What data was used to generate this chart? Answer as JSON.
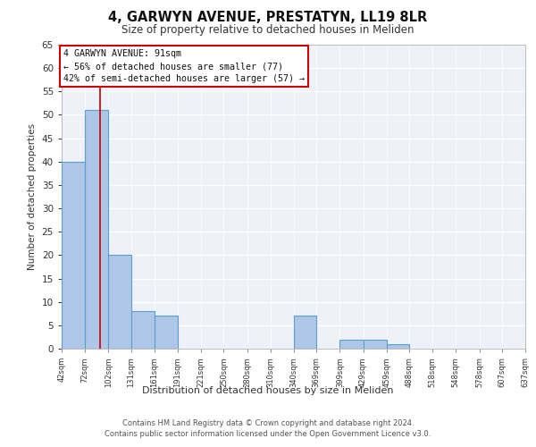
{
  "title1": "4, GARWYN AVENUE, PRESTATYN, LL19 8LR",
  "title2": "Size of property relative to detached houses in Meliden",
  "xlabel": "Distribution of detached houses by size in Meliden",
  "ylabel": "Number of detached properties",
  "bar_values": [
    40,
    51,
    20,
    8,
    7,
    0,
    0,
    0,
    0,
    0,
    7,
    0,
    2,
    2,
    1,
    0,
    0,
    0,
    0,
    0
  ],
  "bin_edges": [
    42,
    72,
    102,
    131,
    161,
    191,
    221,
    250,
    280,
    310,
    340,
    369,
    399,
    429,
    459,
    488,
    518,
    548,
    578,
    607,
    637
  ],
  "tick_labels": [
    "42sqm",
    "72sqm",
    "102sqm",
    "131sqm",
    "161sqm",
    "191sqm",
    "221sqm",
    "250sqm",
    "280sqm",
    "310sqm",
    "340sqm",
    "369sqm",
    "399sqm",
    "429sqm",
    "459sqm",
    "488sqm",
    "518sqm",
    "548sqm",
    "578sqm",
    "607sqm",
    "637sqm"
  ],
  "bar_color": "#aec6e8",
  "bar_edge_color": "#5a9fd4",
  "property_line_x": 91,
  "ylim": [
    0,
    65
  ],
  "yticks": [
    0,
    5,
    10,
    15,
    20,
    25,
    30,
    35,
    40,
    45,
    50,
    55,
    60,
    65
  ],
  "annotation_text": "4 GARWYN AVENUE: 91sqm\n← 56% of detached houses are smaller (77)\n42% of semi-detached houses are larger (57) →",
  "annotation_box_color": "#ffffff",
  "annotation_box_edge": "#cc0000",
  "footer_text": "Contains HM Land Registry data © Crown copyright and database right 2024.\nContains public sector information licensed under the Open Government Licence v3.0.",
  "background_color": "#eef2f8"
}
